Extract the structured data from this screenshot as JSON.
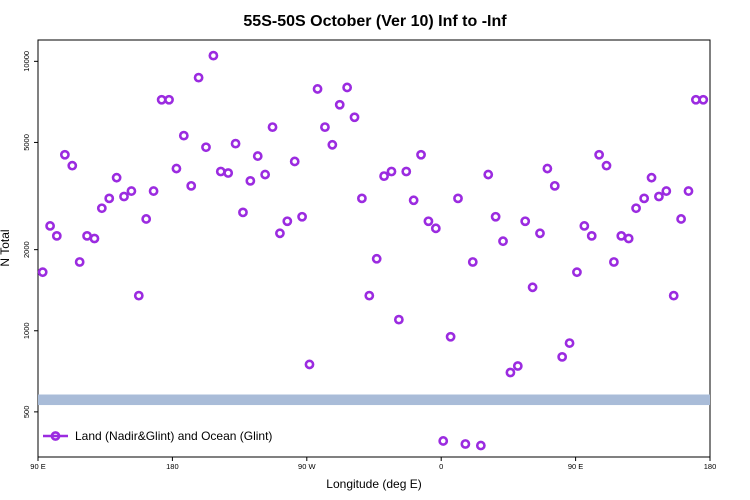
{
  "chart_data": {
    "type": "scatter",
    "title": "55S-50S October (Ver 10)   Inf to -Inf",
    "xlabel": "Longitude (deg E)",
    "ylabel": "N Total",
    "x_tick_labels": [
      "90 E",
      "180",
      "90 W",
      "0",
      "90 E",
      "180"
    ],
    "xlim": [
      0,
      1
    ],
    "y_scale": "log",
    "ylim": [
      340,
      12000
    ],
    "y_ticks": [
      500,
      1000,
      2000,
      5000,
      10000
    ],
    "y_tick_labels": [
      "500",
      "1000",
      "2000",
      "5000",
      "10000"
    ],
    "grid": false,
    "legend_position": "bottom-left",
    "band": {
      "y_low": 530,
      "y_high": 580,
      "color": "#a9bcd8"
    },
    "series": [
      {
        "name": "Land (Nadir&Glint) and Ocean (Glint)",
        "color": "#9b2be0",
        "x": [
          0.007,
          0.018,
          0.028,
          0.04,
          0.051,
          0.062,
          0.073,
          0.084,
          0.095,
          0.106,
          0.117,
          0.128,
          0.139,
          0.15,
          0.161,
          0.172,
          0.184,
          0.195,
          0.206,
          0.217,
          0.228,
          0.239,
          0.25,
          0.261,
          0.272,
          0.283,
          0.294,
          0.305,
          0.316,
          0.327,
          0.338,
          0.349,
          0.36,
          0.371,
          0.382,
          0.393,
          0.404,
          0.416,
          0.427,
          0.438,
          0.449,
          0.46,
          0.471,
          0.482,
          0.493,
          0.504,
          0.515,
          0.526,
          0.537,
          0.548,
          0.559,
          0.57,
          0.581,
          0.592,
          0.603,
          0.614,
          0.625,
          0.636,
          0.647,
          0.659,
          0.67,
          0.681,
          0.692,
          0.703,
          0.714,
          0.725,
          0.736,
          0.747,
          0.758,
          0.769,
          0.78,
          0.791,
          0.802,
          0.813,
          0.824,
          0.835,
          0.846,
          0.857,
          0.868,
          0.879,
          0.89,
          0.902,
          0.913,
          0.924,
          0.935,
          0.946,
          0.957,
          0.968,
          0.979,
          0.99
        ],
        "y": [
          1650,
          2450,
          2250,
          4500,
          4100,
          1800,
          2250,
          2200,
          2850,
          3100,
          3700,
          3150,
          3300,
          1350,
          2600,
          3300,
          7200,
          7200,
          4000,
          5300,
          3450,
          8700,
          4800,
          10500,
          3900,
          3850,
          4950,
          2750,
          3600,
          4450,
          3800,
          5700,
          2300,
          2550,
          4250,
          2650,
          750,
          7900,
          5700,
          4900,
          6900,
          8000,
          6200,
          3100,
          1350,
          1850,
          3750,
          3900,
          1100,
          3900,
          3050,
          4500,
          2550,
          2400,
          390,
          950,
          3100,
          380,
          1800,
          375,
          3800,
          2650,
          2150,
          700,
          740,
          2550,
          1450,
          2300,
          4000,
          3450,
          800,
          900,
          1650,
          2450,
          2250,
          4500,
          4100,
          1800,
          2250,
          2200,
          2850,
          3100,
          3700,
          3150,
          3300,
          1350,
          2600,
          3300,
          7200,
          7200
        ]
      }
    ]
  }
}
